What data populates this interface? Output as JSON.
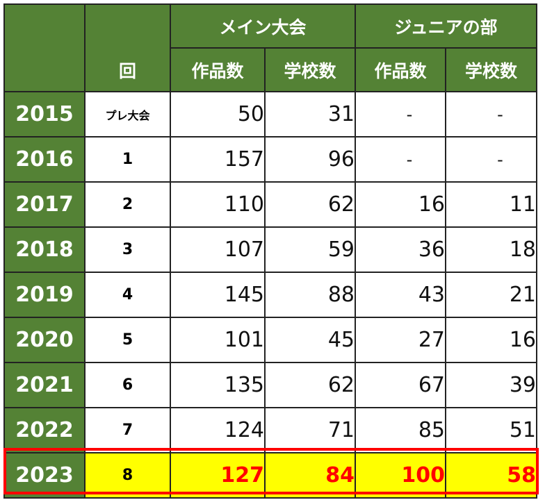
{
  "header": {
    "round_label": "回",
    "main_event": "メイン大会",
    "junior": "ジュニアの部",
    "works": "作品数",
    "schools": "学校数"
  },
  "rows": [
    {
      "year": "2015",
      "round": "プレ大会",
      "main_works": "50",
      "main_schools": "31",
      "jr_works": "-",
      "jr_schools": "-"
    },
    {
      "year": "2016",
      "round": "1",
      "main_works": "157",
      "main_schools": "96",
      "jr_works": "-",
      "jr_schools": "-"
    },
    {
      "year": "2017",
      "round": "2",
      "main_works": "110",
      "main_schools": "62",
      "jr_works": "16",
      "jr_schools": "11"
    },
    {
      "year": "2018",
      "round": "3",
      "main_works": "107",
      "main_schools": "59",
      "jr_works": "36",
      "jr_schools": "18"
    },
    {
      "year": "2019",
      "round": "4",
      "main_works": "145",
      "main_schools": "88",
      "jr_works": "43",
      "jr_schools": "21"
    },
    {
      "year": "2020",
      "round": "5",
      "main_works": "101",
      "main_schools": "45",
      "jr_works": "27",
      "jr_schools": "16"
    },
    {
      "year": "2021",
      "round": "6",
      "main_works": "135",
      "main_schools": "62",
      "jr_works": "67",
      "jr_schools": "39"
    },
    {
      "year": "2022",
      "round": "7",
      "main_works": "124",
      "main_schools": "71",
      "jr_works": "85",
      "jr_schools": "51"
    },
    {
      "year": "2023",
      "round": "8",
      "main_works": "127",
      "main_schools": "84",
      "jr_works": "100",
      "jr_schools": "58"
    }
  ],
  "colors": {
    "header_green": "#548235",
    "highlight_fill": "#ffff00",
    "highlight_text": "#ff0000",
    "highlight_border": "#ff0000"
  }
}
